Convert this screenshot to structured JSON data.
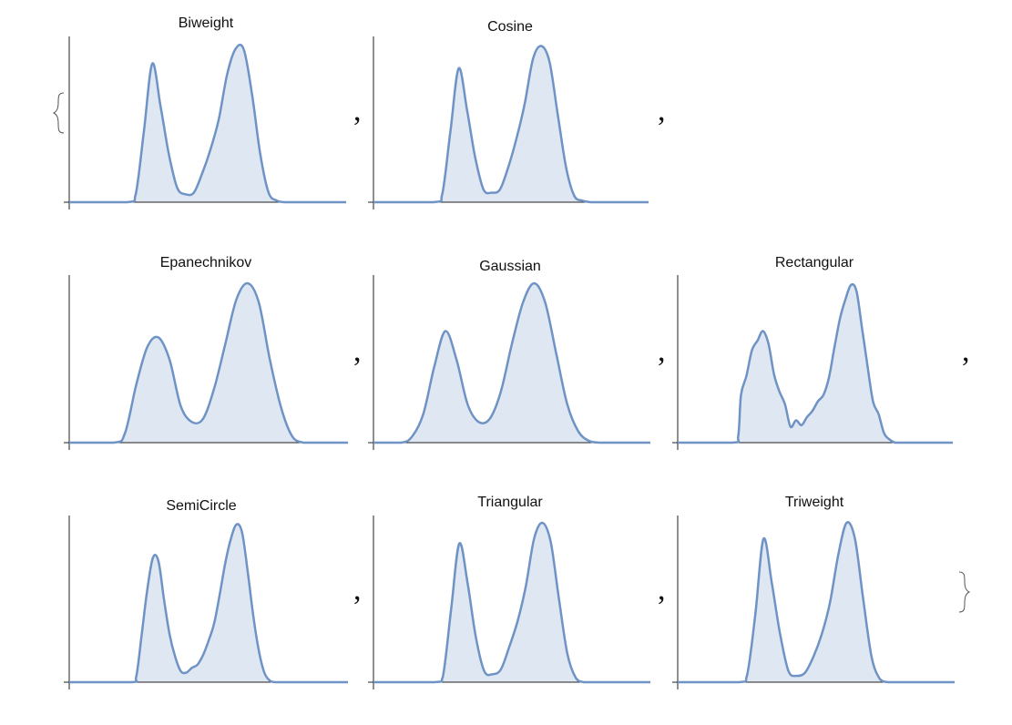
{
  "chart_data": {
    "type": "area",
    "layout": "list-of-panels",
    "separator": ",",
    "colors": {
      "line": "#6e93c4",
      "fill": "#dfe7f3",
      "axis": "#222222"
    },
    "xlim": [
      0,
      1
    ],
    "ylim": [
      0,
      1
    ],
    "panels": [
      {
        "title": "Biweight",
        "x": [
          0,
          0.21,
          0.24,
          0.27,
          0.3,
          0.33,
          0.36,
          0.39,
          0.42,
          0.45,
          0.48,
          0.51,
          0.54,
          0.57,
          0.6,
          0.63,
          0.66,
          0.69,
          0.72,
          0.75,
          0.78,
          0.81,
          0.84,
          0.87,
          0.9,
          1
        ],
        "y": [
          0,
          0,
          0.05,
          0.45,
          0.87,
          0.6,
          0.3,
          0.09,
          0.05,
          0.06,
          0.18,
          0.33,
          0.52,
          0.8,
          0.96,
          0.96,
          0.68,
          0.3,
          0.06,
          0.01,
          0,
          0,
          0,
          0,
          0,
          0
        ]
      },
      {
        "title": "Cosine",
        "x": [
          0,
          0.22,
          0.25,
          0.28,
          0.31,
          0.34,
          0.37,
          0.4,
          0.43,
          0.46,
          0.49,
          0.52,
          0.55,
          0.58,
          0.61,
          0.64,
          0.67,
          0.7,
          0.73,
          0.76,
          0.79,
          0.82,
          0.85,
          0.88,
          0.91,
          1
        ],
        "y": [
          0,
          0,
          0.05,
          0.45,
          0.84,
          0.58,
          0.28,
          0.08,
          0.06,
          0.08,
          0.22,
          0.4,
          0.62,
          0.9,
          0.98,
          0.88,
          0.55,
          0.22,
          0.04,
          0.01,
          0,
          0,
          0,
          0,
          0,
          0
        ]
      },
      {
        "title": "Epanechnikov",
        "x": [
          0,
          0.16,
          0.2,
          0.24,
          0.28,
          0.32,
          0.36,
          0.4,
          0.44,
          0.48,
          0.52,
          0.56,
          0.6,
          0.64,
          0.68,
          0.72,
          0.76,
          0.8,
          0.84,
          0.88,
          0.92,
          1
        ],
        "y": [
          0,
          0,
          0.06,
          0.36,
          0.6,
          0.66,
          0.52,
          0.23,
          0.13,
          0.15,
          0.34,
          0.62,
          0.9,
          1.0,
          0.88,
          0.52,
          0.22,
          0.04,
          0,
          0,
          0,
          0
        ]
      },
      {
        "title": "Gaussian",
        "x": [
          0,
          0.1,
          0.14,
          0.18,
          0.22,
          0.26,
          0.3,
          0.34,
          0.38,
          0.42,
          0.46,
          0.5,
          0.54,
          0.58,
          0.62,
          0.66,
          0.7,
          0.74,
          0.78,
          0.82,
          0.86,
          0.9,
          0.94,
          1
        ],
        "y": [
          0,
          0,
          0.04,
          0.18,
          0.48,
          0.7,
          0.52,
          0.24,
          0.13,
          0.15,
          0.32,
          0.62,
          0.88,
          1.0,
          0.88,
          0.56,
          0.24,
          0.07,
          0.01,
          0,
          0,
          0,
          0,
          0
        ]
      },
      {
        "title": "Rectangular",
        "x": [
          0,
          0.2,
          0.22,
          0.23,
          0.25,
          0.27,
          0.29,
          0.31,
          0.33,
          0.35,
          0.37,
          0.39,
          0.41,
          0.43,
          0.45,
          0.47,
          0.49,
          0.51,
          0.53,
          0.55,
          0.57,
          0.59,
          0.61,
          0.63,
          0.65,
          0.67,
          0.69,
          0.71,
          0.73,
          0.75,
          0.77,
          0.79,
          0.81,
          0.83,
          0.85,
          1
        ],
        "y": [
          0,
          0,
          0.04,
          0.3,
          0.42,
          0.58,
          0.64,
          0.7,
          0.62,
          0.43,
          0.32,
          0.24,
          0.1,
          0.14,
          0.11,
          0.16,
          0.2,
          0.26,
          0.3,
          0.41,
          0.6,
          0.78,
          0.9,
          0.99,
          0.95,
          0.72,
          0.48,
          0.26,
          0.18,
          0.06,
          0.02,
          0,
          0,
          0,
          0,
          0
        ]
      },
      {
        "title": "SemiCircle",
        "x": [
          0,
          0.22,
          0.24,
          0.26,
          0.28,
          0.3,
          0.32,
          0.34,
          0.36,
          0.38,
          0.4,
          0.42,
          0.44,
          0.46,
          0.48,
          0.5,
          0.52,
          0.54,
          0.56,
          0.58,
          0.6,
          0.62,
          0.64,
          0.66,
          0.68,
          0.7,
          0.72,
          0.74,
          0.76,
          0.78,
          0.8,
          1
        ],
        "y": [
          0,
          0,
          0.03,
          0.3,
          0.58,
          0.78,
          0.76,
          0.52,
          0.3,
          0.16,
          0.07,
          0.06,
          0.09,
          0.11,
          0.17,
          0.26,
          0.37,
          0.55,
          0.75,
          0.9,
          0.99,
          0.94,
          0.7,
          0.42,
          0.2,
          0.06,
          0.01,
          0,
          0,
          0,
          0,
          0
        ]
      },
      {
        "title": "Triangular",
        "x": [
          0,
          0.22,
          0.25,
          0.28,
          0.31,
          0.34,
          0.37,
          0.4,
          0.43,
          0.46,
          0.49,
          0.52,
          0.55,
          0.58,
          0.61,
          0.64,
          0.67,
          0.7,
          0.73,
          0.76,
          0.79,
          0.82,
          0.85,
          1
        ],
        "y": [
          0,
          0,
          0.03,
          0.45,
          0.87,
          0.62,
          0.28,
          0.07,
          0.05,
          0.08,
          0.22,
          0.38,
          0.6,
          0.9,
          1.0,
          0.88,
          0.52,
          0.18,
          0.03,
          0,
          0,
          0,
          0,
          0
        ]
      },
      {
        "title": "Triweight",
        "x": [
          0,
          0.22,
          0.25,
          0.28,
          0.31,
          0.34,
          0.37,
          0.4,
          0.43,
          0.46,
          0.49,
          0.52,
          0.55,
          0.58,
          0.61,
          0.64,
          0.67,
          0.7,
          0.73,
          0.76,
          0.79,
          0.82,
          0.85,
          1
        ],
        "y": [
          0,
          0,
          0.04,
          0.42,
          0.9,
          0.62,
          0.3,
          0.07,
          0.04,
          0.06,
          0.16,
          0.3,
          0.5,
          0.8,
          1.0,
          0.9,
          0.52,
          0.16,
          0.02,
          0,
          0,
          0,
          0,
          0
        ]
      }
    ]
  }
}
